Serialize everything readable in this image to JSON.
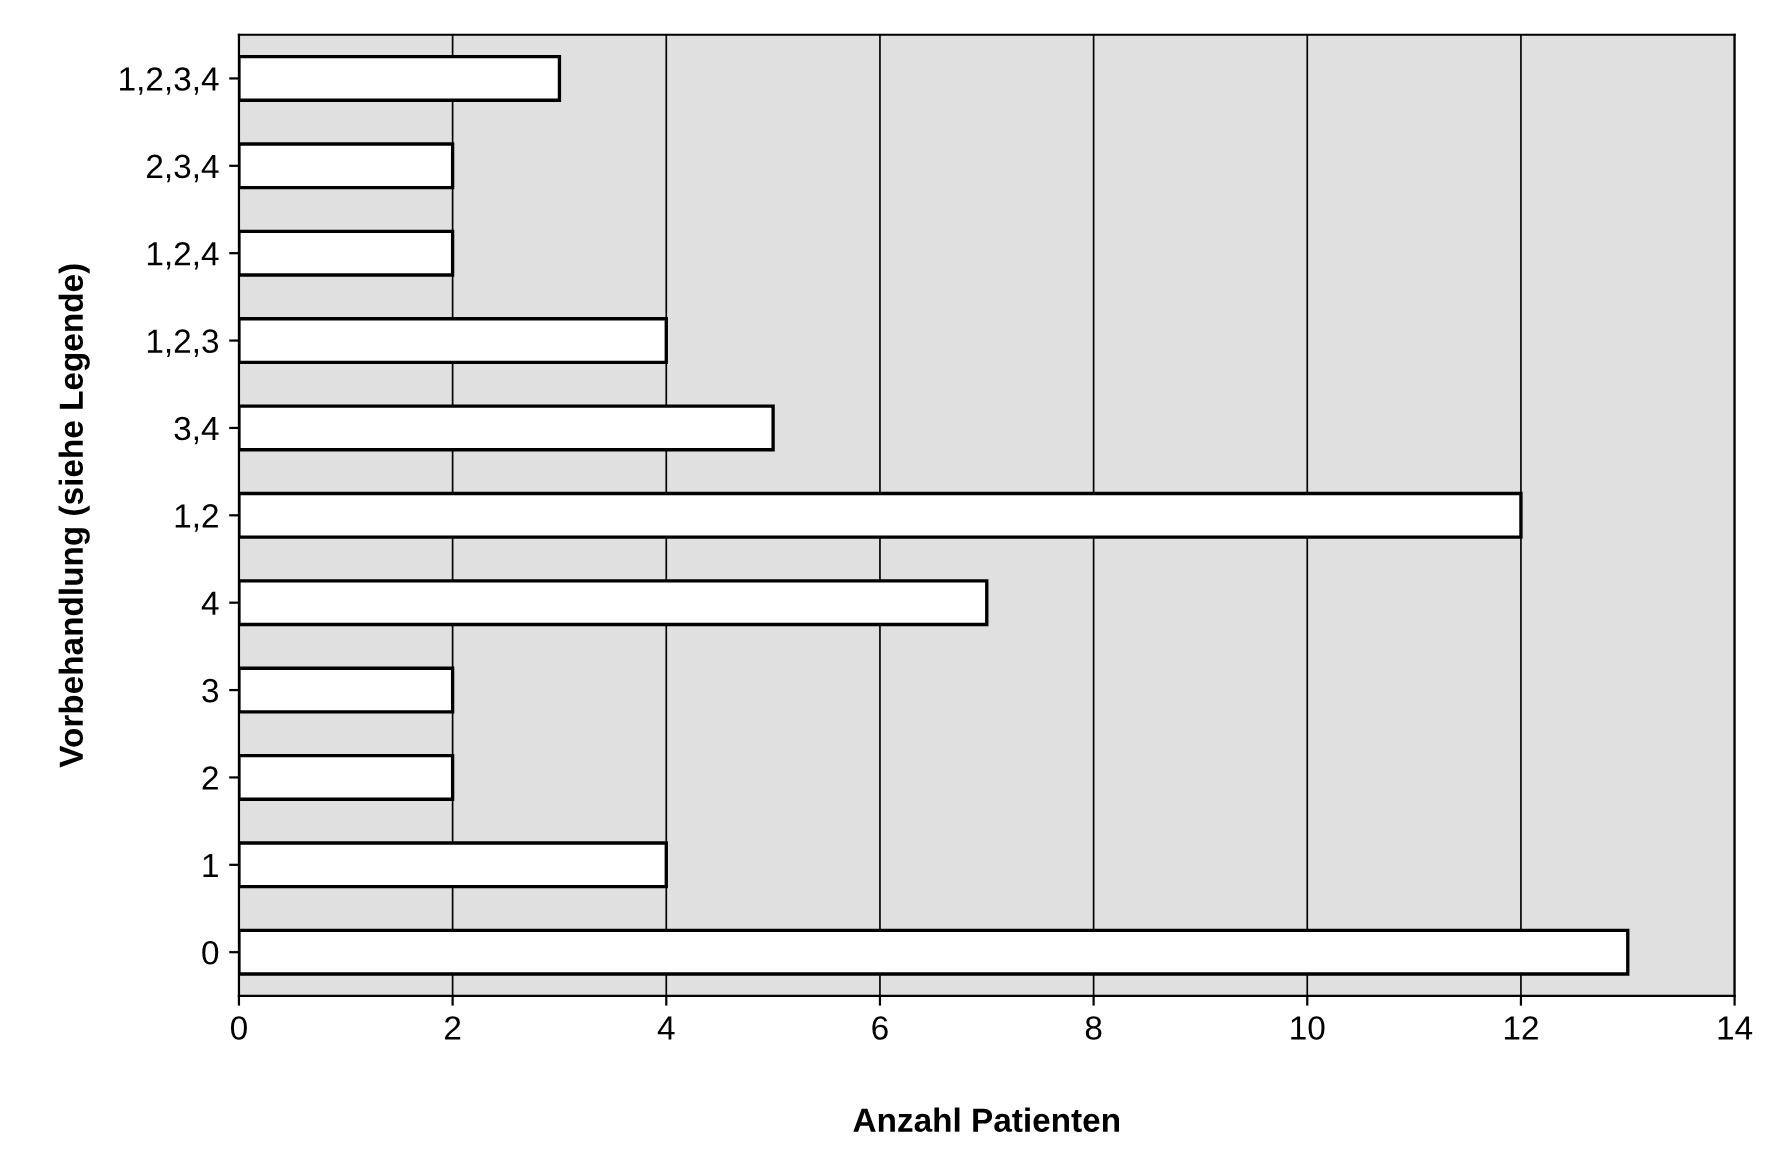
{
  "chart_data": {
    "type": "bar",
    "orientation": "horizontal",
    "xlabel": "Anzahl Patienten",
    "ylabel": "Vorbehandlung (siehe Legende)",
    "categories": [
      "1,2,3,4",
      "2,3,4",
      "1,2,4",
      "1,2,3",
      "3,4",
      "1,2",
      "4",
      "3",
      "2",
      "1",
      "0"
    ],
    "values": [
      3,
      2,
      2,
      4,
      5,
      12,
      7,
      2,
      2,
      4,
      13
    ],
    "color": "#ffffff",
    "xlim": [
      0,
      14
    ],
    "xticks": [
      0,
      2,
      4,
      6,
      8,
      10,
      12,
      14
    ],
    "grid": "x",
    "legend": false
  }
}
